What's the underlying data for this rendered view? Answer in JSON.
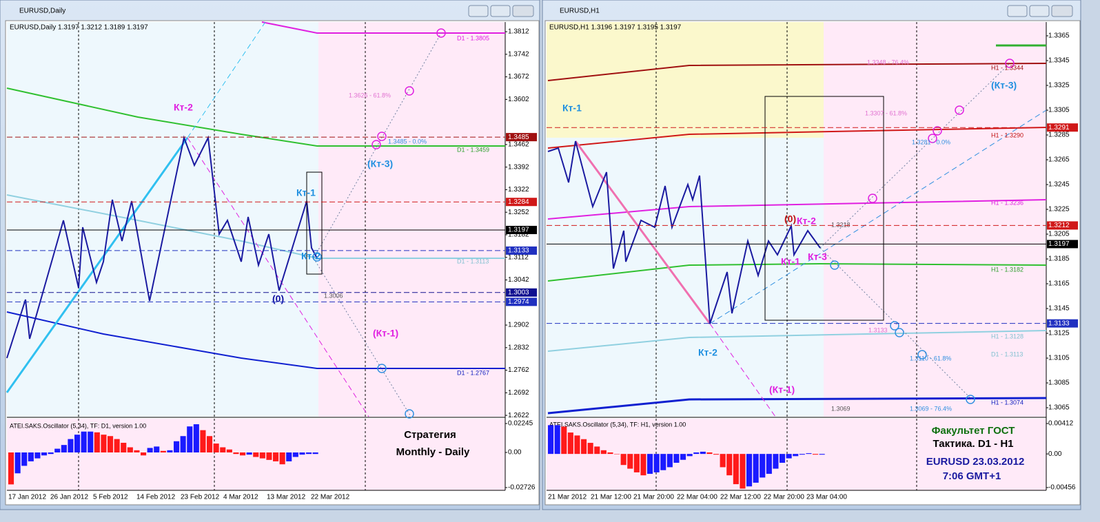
{
  "windows": [
    {
      "title": "EURUSD,Daily",
      "header": "EURUSD,Daily  1.3197 1.3212 1.3189 1.3197",
      "price_axis": {
        "range": [
          1.2618,
          1.3842
        ],
        "ticks": [
          1.3812,
          1.3742,
          1.3672,
          1.3602,
          1.3462,
          1.3392,
          1.3322,
          1.3252,
          1.3182,
          1.3112,
          1.3042,
          1.2902,
          1.2832,
          1.2762,
          1.2692,
          1.2622
        ],
        "levels": [
          {
            "value": 1.3485,
            "color": "#a01010"
          },
          {
            "value": 1.3284,
            "color": "#d01818"
          },
          {
            "value": 1.3197,
            "color": "#000000"
          },
          {
            "value": 1.3133,
            "color": "#2030c0"
          },
          {
            "value": 1.3003,
            "color": "#101090"
          },
          {
            "value": 1.2974,
            "color": "#2030c0"
          }
        ]
      },
      "time_labels": [
        "17 Jan 2012",
        "26 Jan 2012",
        "5 Feb 2012",
        "14 Feb 2012",
        "23 Feb 2012",
        "4 Mar 2012",
        "13 Mar 2012",
        "22 Mar 2012"
      ],
      "annotations": [
        "Кт-2",
        "Кт-1",
        "Кт-2",
        "(0)",
        "(Кт-3)",
        "(Кт-1)",
        "1.3626 - 61.8%",
        "1.3485 - 0.0%",
        "D1 - 1.3805",
        "D1 - 1.3459",
        "D1 - 1.3113",
        "1.3006",
        "D1 - 1.2767"
      ],
      "oscillator": {
        "label": "ATEI.SAKS.Oscillator (5,34), TF: D1, version 1.00",
        "range": [
          -0.02726,
          0.02245
        ],
        "ticks": [
          0.02245,
          {
            "value": 0,
            "label": "0.00"
          },
          -0.02726
        ],
        "up_color": "#1a1aff",
        "down_color": "#ff1a1a",
        "values": [
          -0.0248,
          -0.0162,
          -0.0104,
          -0.0069,
          -0.0046,
          -0.0023,
          -0.0012,
          0.0029,
          0.0058,
          0.0104,
          0.0138,
          0.0162,
          0.0162,
          0.0156,
          0.0138,
          0.0127,
          0.0104,
          0.0075,
          0.004,
          0.0017,
          -0.0023,
          0.0035,
          0.0046,
          0.0012,
          0.0017,
          0.0087,
          0.0127,
          0.0202,
          0.0219,
          0.0173,
          0.0127,
          0.0069,
          0.004,
          0.0023,
          -0.0012,
          -0.0023,
          -0.0017,
          -0.0035,
          -0.0046,
          -0.0058,
          -0.0069,
          -0.0092,
          -0.0069,
          -0.0035,
          -0.0017,
          -0.0012,
          -0.0012
        ]
      },
      "notes": [
        "Стратегия",
        "Monthly - Daily"
      ]
    },
    {
      "title": "EURUSD,H1",
      "header": "EURUSD,H1  1.3196 1.3197 1.3195 1.3197",
      "price_axis": {
        "range": [
          1.30578,
          1.33761
        ],
        "ticks": [
          1.3365,
          1.3345,
          1.3325,
          1.3305,
          1.3285,
          1.3265,
          1.3245,
          1.3225,
          1.3205,
          1.3185,
          1.3165,
          1.3145,
          1.3125,
          1.3105,
          1.3085,
          1.3065
        ],
        "levels": [
          {
            "value": 1.3291,
            "color": "#d01818"
          },
          {
            "value": 1.3212,
            "color": "#d01818"
          },
          {
            "value": 1.3197,
            "color": "#000000"
          },
          {
            "value": 1.3133,
            "color": "#2030c0"
          }
        ]
      },
      "time_labels": [
        "21 Mar 2012",
        "21 Mar 12:00",
        "21 Mar 20:00",
        "22 Mar 04:00",
        "22 Mar 12:00",
        "22 Mar 20:00",
        "23 Mar 04:00"
      ],
      "annotations": [
        "Кт-1",
        "(Кт-3)",
        "(0)",
        "Кт-2",
        "Кт-1",
        "Кт-3",
        "Кт-2",
        "(Кт-1)",
        "1.3348 - 76.4%",
        "H1 - 1.3344",
        "1.3307 - 61.8%",
        "1.3281 - 0.0%",
        "H1 - 1.3290",
        "1.3218",
        "H1 - 1.3236",
        "H1 - 1.3182",
        "1.3133",
        "H1 - 1.3128",
        "1.3110 - 61.8%",
        "D1 - 1.3113",
        "1.3069",
        "1.3069 - 76.4%",
        "H1 - 1.3074"
      ],
      "oscillator": {
        "label": "ATEI.SAKS.Oscillator (5,34), TF: H1, version 1.00",
        "range": [
          -0.00456,
          0.00412
        ],
        "ticks": [
          0.00412,
          {
            "value": 0,
            "label": "0.00"
          },
          -0.00456
        ],
        "up_color": "#1a1aff",
        "down_color": "#ff1a1a",
        "values": [
          0.0039,
          0.0039,
          0.0037,
          0.0029,
          0.0025,
          0.002,
          0.0015,
          0.001,
          0.0005,
          0.0002,
          0,
          -0.0015,
          -0.002,
          -0.0025,
          -0.0029,
          -0.0027,
          -0.0025,
          -0.0022,
          -0.0018,
          -0.0012,
          -0.0008,
          -0.0003,
          0.0002,
          0.0003,
          0.0002,
          -0.0001,
          -0.0018,
          -0.0029,
          -0.0041,
          -0.0047,
          -0.0044,
          -0.0039,
          -0.0032,
          -0.0027,
          -0.002,
          -0.0012,
          -0.0006,
          -0.0003,
          -0.0001,
          0.0001,
          -0.0001,
          -0.0001
        ]
      },
      "notes": [
        "Факультет ГОСТ",
        "Тактика. D1 - H1",
        "EURUSD 23.03.2012",
        "7:06 GMT+1"
      ]
    }
  ]
}
